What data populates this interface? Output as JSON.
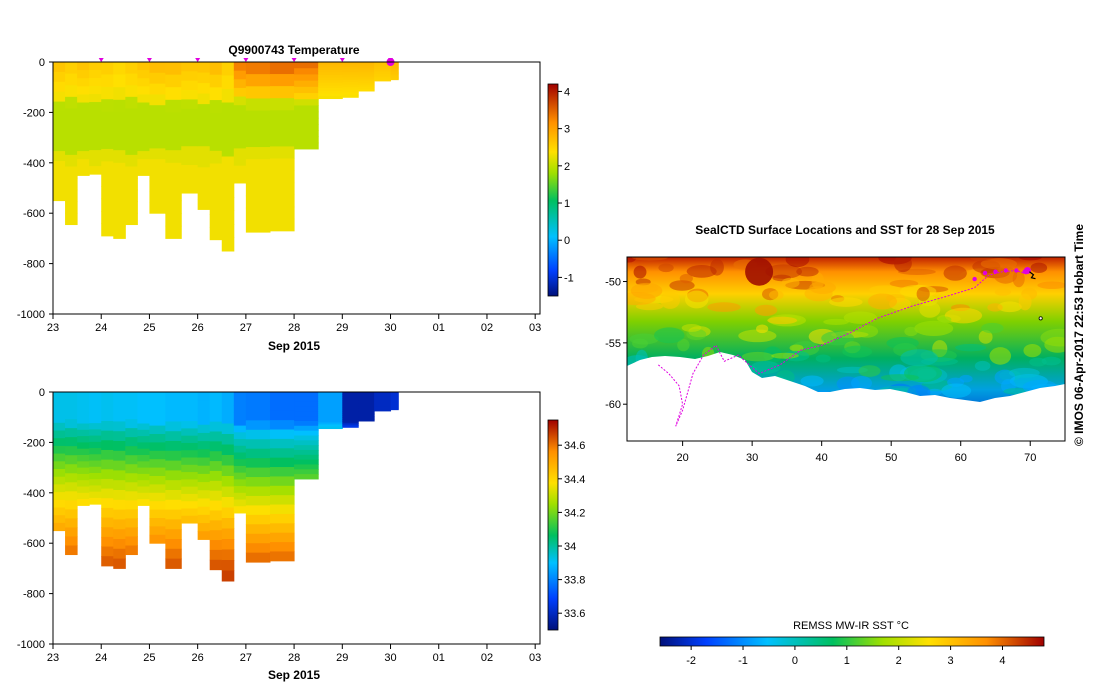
{
  "copyright": "© IMOS 06-Apr-2017 22:53 Hobart Time",
  "colors": {
    "frame": "#000000",
    "track": "#e000e0",
    "land": "#ffffff"
  },
  "chart_data": [
    {
      "type": "heatmap",
      "title": "Q9900743  Temperature",
      "xlabel": "Sep 2015",
      "ylabel": "",
      "x_tick_labels": [
        "23",
        "24",
        "25",
        "26",
        "27",
        "28",
        "29",
        "30",
        "01",
        "02",
        "03"
      ],
      "y_tick_labels": [
        "0",
        "-200",
        "-400",
        "-600",
        "-800",
        "-1000"
      ],
      "y_ticks": [
        0,
        -200,
        -400,
        -600,
        -800,
        -1000
      ],
      "ylim": [
        -1000,
        0
      ],
      "xlim_days": [
        23,
        33.1
      ],
      "colorbar_ticks": [
        4,
        3,
        2,
        1,
        0,
        -1
      ],
      "colorbar_range": [
        -1.5,
        4.2
      ],
      "profile_markers_days": [
        24,
        25,
        26,
        27,
        28,
        29,
        30
      ],
      "profiles": {
        "days": [
          23.0,
          23.25,
          23.5,
          23.75,
          24.0,
          24.25,
          24.5,
          24.75,
          25.0,
          25.33,
          25.66,
          26.0,
          26.25,
          26.5,
          26.75,
          27.0,
          27.5,
          28.0,
          28.5,
          29.0,
          29.33,
          29.66,
          30.0
        ],
        "max_depth": [
          550,
          645,
          450,
          445,
          690,
          700,
          645,
          450,
          600,
          700,
          520,
          585,
          705,
          750,
          480,
          675,
          670,
          345,
          145,
          140,
          115,
          75,
          70
        ],
        "surface_temp": [
          2.7,
          2.6,
          2.7,
          2.6,
          2.6,
          2.5,
          2.6,
          2.7,
          2.8,
          2.8,
          2.7,
          2.7,
          2.8,
          2.6,
          3.4,
          3.5,
          3.6,
          3.5,
          2.8,
          2.8,
          2.8,
          2.7,
          2.8
        ],
        "deep_temp": 2.2
      }
    },
    {
      "type": "heatmap",
      "title": "",
      "xlabel": "Sep 2015",
      "ylabel": "",
      "x_tick_labels": [
        "23",
        "24",
        "25",
        "26",
        "27",
        "28",
        "29",
        "30",
        "01",
        "02",
        "03"
      ],
      "y_tick_labels": [
        "0",
        "-200",
        "-400",
        "-600",
        "-800",
        "-1000"
      ],
      "y_ticks": [
        0,
        -200,
        -400,
        -600,
        -800,
        -1000
      ],
      "ylim": [
        -1000,
        0
      ],
      "xlim_days": [
        23,
        33.1
      ],
      "colorbar_ticks": [
        "34.6",
        "34.4",
        "34.2",
        "34",
        "33.8",
        "33.6"
      ],
      "colorbar_range": [
        33.5,
        34.75
      ],
      "profiles": {
        "days": [
          23.0,
          23.25,
          23.5,
          23.75,
          24.0,
          24.25,
          24.5,
          24.75,
          25.0,
          25.33,
          25.66,
          26.0,
          26.25,
          26.5,
          26.75,
          27.0,
          27.5,
          28.0,
          28.5,
          29.0,
          29.33,
          29.66,
          30.0
        ],
        "max_depth": [
          550,
          645,
          450,
          445,
          690,
          700,
          645,
          450,
          600,
          700,
          520,
          585,
          705,
          750,
          480,
          675,
          670,
          345,
          145,
          140,
          115,
          75,
          70
        ],
        "surface_sal": [
          33.88,
          33.88,
          33.87,
          33.86,
          33.87,
          33.86,
          33.86,
          33.85,
          33.85,
          33.84,
          33.84,
          33.83,
          33.84,
          33.82,
          33.75,
          33.74,
          33.72,
          33.72,
          33.8,
          33.55,
          33.55,
          33.58,
          33.6
        ],
        "deep_sal": 34.65
      }
    },
    {
      "type": "heatmap",
      "title": "SealCTD Surface Locations and SST for 28 Sep 2015",
      "xlabel": "",
      "ylabel": "",
      "x_ticks": [
        20,
        30,
        40,
        50,
        60,
        70
      ],
      "y_ticks": [
        -50,
        -55,
        -60
      ],
      "xlim": [
        12,
        75
      ],
      "ylim": [
        -63,
        -48
      ],
      "colorbar_label": "REMSS MW-IR SST °C",
      "colorbar_ticks": [
        -2,
        -1,
        0,
        1,
        2,
        3,
        4
      ],
      "colorbar_range": [
        -2.6,
        4.8
      ]
    }
  ]
}
